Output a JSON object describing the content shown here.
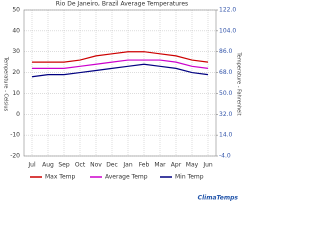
{
  "chart_data": {
    "type": "line",
    "title": "Rio De Janeiro, Brazil Average Temperatures",
    "ylabel": "Temperature - Celsius",
    "y2label": "Temperature - Fahrenheit",
    "categories": [
      "Jul",
      "Aug",
      "Sep",
      "Oct",
      "Nov",
      "Dec",
      "Jan",
      "Feb",
      "Mar",
      "Apr",
      "May",
      "Jun"
    ],
    "series": [
      {
        "name": "Max Temp",
        "color": "#cc0000",
        "values": [
          25,
          25,
          25,
          26,
          28,
          29,
          30,
          30,
          29,
          28,
          26,
          25
        ]
      },
      {
        "name": "Average Temp",
        "color": "#cc00cc",
        "values": [
          22,
          22,
          22,
          23,
          24,
          25,
          26,
          26,
          26,
          25,
          23,
          22
        ]
      },
      {
        "name": "Min Temp",
        "color": "#000080",
        "values": [
          18,
          19,
          19,
          20,
          21,
          22,
          23,
          24,
          23,
          22,
          20,
          19
        ]
      }
    ],
    "ylim": [
      -20,
      50
    ],
    "yticks": [
      -20,
      -10,
      0,
      10,
      20,
      30,
      40,
      50
    ],
    "y2lim": [
      -4,
      122
    ],
    "y2ticks": [
      {
        "value": -4,
        "label": "-4.0"
      },
      {
        "value": 14,
        "label": "14.0"
      },
      {
        "value": 32,
        "label": "32.0"
      },
      {
        "value": 50,
        "label": "50.0"
      },
      {
        "value": 68,
        "label": "68.0"
      },
      {
        "value": 86,
        "label": "86.0"
      },
      {
        "value": 104,
        "label": "104.0"
      },
      {
        "value": 122,
        "label": "122.0"
      }
    ],
    "grid": true,
    "credit": "ClimaTemps"
  }
}
